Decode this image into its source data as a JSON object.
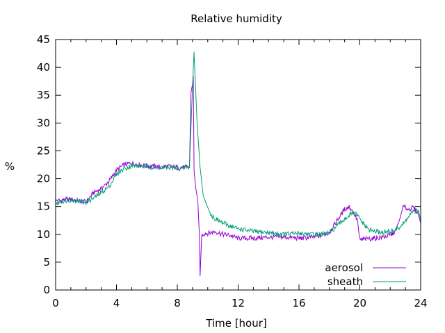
{
  "chart_data": {
    "type": "line",
    "title": "Relative humidity",
    "xlabel": "Time [hour]",
    "ylabel": "%",
    "xlim": [
      0,
      24
    ],
    "ylim": [
      0,
      45
    ],
    "xticks": [
      0,
      4,
      8,
      12,
      16,
      20,
      24
    ],
    "yticks": [
      0,
      5,
      10,
      15,
      20,
      25,
      30,
      35,
      40,
      45
    ],
    "grid": false,
    "legend_position": "bottom-right",
    "series": [
      {
        "name": "aerosol",
        "color": "#9400d3",
        "points": [
          [
            0.0,
            16.0
          ],
          [
            0.5,
            16.2
          ],
          [
            1.0,
            16.3
          ],
          [
            1.5,
            16.0
          ],
          [
            2.0,
            15.8
          ],
          [
            2.5,
            17.5
          ],
          [
            3.0,
            18.2
          ],
          [
            3.5,
            19.5
          ],
          [
            4.0,
            21.5
          ],
          [
            4.5,
            22.5
          ],
          [
            5.0,
            22.8
          ],
          [
            5.5,
            22.5
          ],
          [
            6.0,
            22.3
          ],
          [
            6.5,
            22.2
          ],
          [
            7.0,
            22.0
          ],
          [
            7.5,
            22.2
          ],
          [
            8.0,
            22.0
          ],
          [
            8.5,
            22.0
          ],
          [
            8.8,
            22.2
          ],
          [
            8.9,
            35.5
          ],
          [
            9.0,
            37.0
          ],
          [
            9.05,
            38.5
          ],
          [
            9.1,
            21.5
          ],
          [
            9.2,
            18.5
          ],
          [
            9.35,
            16.0
          ],
          [
            9.45,
            10.0
          ],
          [
            9.5,
            2.5
          ],
          [
            9.6,
            9.8
          ],
          [
            9.8,
            10.2
          ],
          [
            10.0,
            10.2
          ],
          [
            10.5,
            10.5
          ],
          [
            11.0,
            10.0
          ],
          [
            11.5,
            9.8
          ],
          [
            12.0,
            9.3
          ],
          [
            13.0,
            9.3
          ],
          [
            14.0,
            9.5
          ],
          [
            15.0,
            9.5
          ],
          [
            16.0,
            9.3
          ],
          [
            17.0,
            9.5
          ],
          [
            17.5,
            9.8
          ],
          [
            18.0,
            10.3
          ],
          [
            18.5,
            12.5
          ],
          [
            19.0,
            14.5
          ],
          [
            19.3,
            15.0
          ],
          [
            19.6,
            13.8
          ],
          [
            19.85,
            12.5
          ],
          [
            19.95,
            10.0
          ],
          [
            20.0,
            9.0
          ],
          [
            20.5,
            9.2
          ],
          [
            21.0,
            9.3
          ],
          [
            21.5,
            9.5
          ],
          [
            22.0,
            9.8
          ],
          [
            22.3,
            10.5
          ],
          [
            22.6,
            12.5
          ],
          [
            22.85,
            15.0
          ],
          [
            23.2,
            14.5
          ],
          [
            23.5,
            14.8
          ],
          [
            23.8,
            14.0
          ],
          [
            24.0,
            12.0
          ]
        ]
      },
      {
        "name": "sheath",
        "color": "#009e73",
        "points": [
          [
            0.0,
            15.5
          ],
          [
            0.5,
            16.0
          ],
          [
            1.0,
            16.2
          ],
          [
            1.5,
            16.0
          ],
          [
            2.0,
            15.8
          ],
          [
            2.5,
            16.5
          ],
          [
            3.0,
            17.5
          ],
          [
            3.5,
            18.5
          ],
          [
            4.0,
            20.8
          ],
          [
            4.5,
            21.8
          ],
          [
            5.0,
            22.3
          ],
          [
            5.5,
            22.3
          ],
          [
            6.0,
            22.2
          ],
          [
            6.5,
            22.0
          ],
          [
            7.0,
            22.0
          ],
          [
            7.5,
            22.0
          ],
          [
            8.0,
            21.8
          ],
          [
            8.5,
            22.0
          ],
          [
            8.8,
            22.0
          ],
          [
            8.95,
            33.0
          ],
          [
            9.1,
            42.8
          ],
          [
            9.3,
            30.0
          ],
          [
            9.5,
            22.0
          ],
          [
            9.7,
            17.0
          ],
          [
            9.9,
            15.5
          ],
          [
            10.2,
            13.5
          ],
          [
            10.5,
            12.8
          ],
          [
            11.0,
            12.0
          ],
          [
            11.5,
            11.5
          ],
          [
            12.0,
            11.0
          ],
          [
            13.0,
            10.5
          ],
          [
            14.0,
            10.3
          ],
          [
            15.0,
            10.0
          ],
          [
            16.0,
            10.2
          ],
          [
            17.0,
            10.0
          ],
          [
            17.5,
            10.0
          ],
          [
            18.0,
            10.3
          ],
          [
            18.5,
            11.5
          ],
          [
            19.0,
            12.8
          ],
          [
            19.5,
            13.8
          ],
          [
            19.8,
            13.5
          ],
          [
            20.2,
            12.0
          ],
          [
            20.6,
            10.8
          ],
          [
            21.0,
            10.5
          ],
          [
            21.5,
            10.3
          ],
          [
            22.0,
            10.5
          ],
          [
            22.5,
            11.0
          ],
          [
            22.9,
            12.0
          ],
          [
            23.3,
            13.5
          ],
          [
            23.6,
            14.2
          ],
          [
            23.9,
            13.8
          ],
          [
            24.0,
            12.5
          ]
        ]
      }
    ]
  }
}
